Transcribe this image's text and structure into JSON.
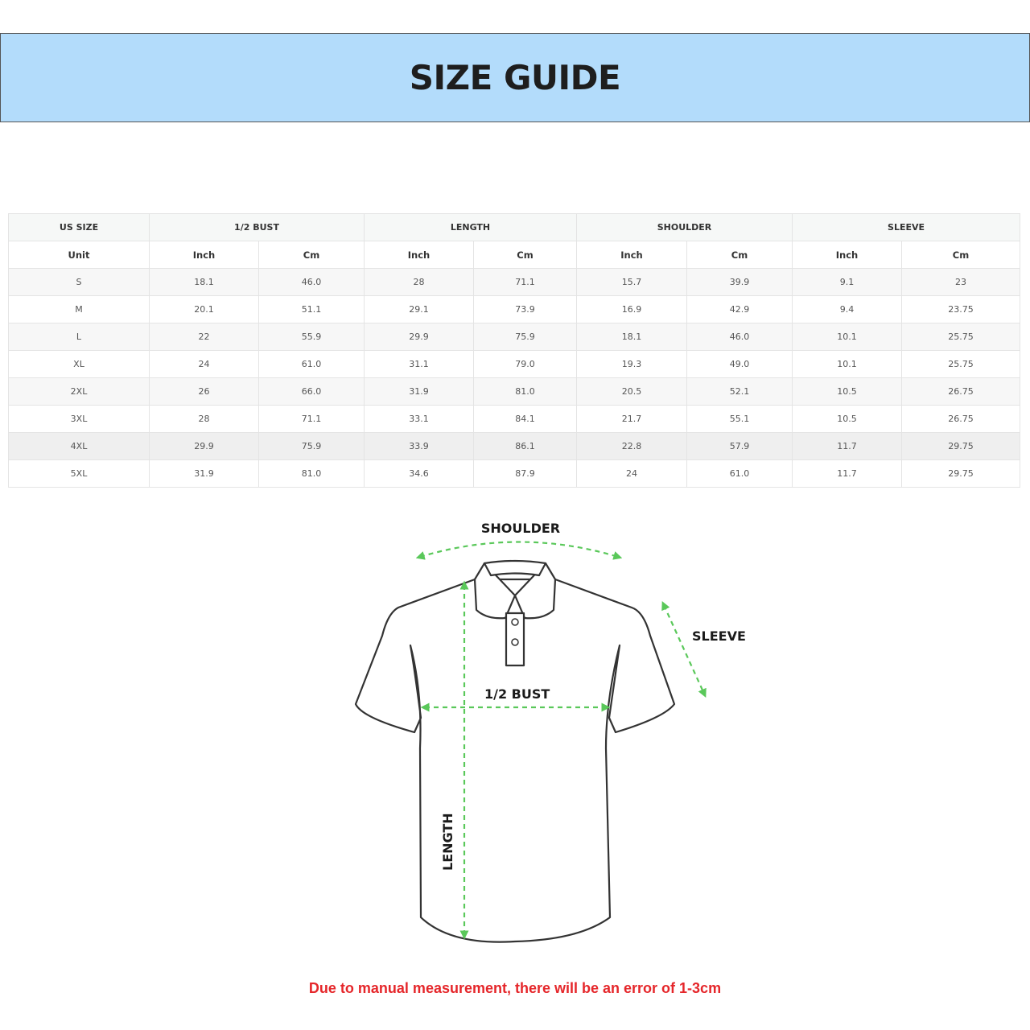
{
  "title": "SIZE GUIDE",
  "table": {
    "group_headers": [
      "US SIZE",
      "1/2 BUST",
      "LENGTH",
      "SHOULDER",
      "SLEEVE"
    ],
    "unit_row": [
      "Unit",
      "Inch",
      "Cm",
      "Inch",
      "Cm",
      "Inch",
      "Cm",
      "Inch",
      "Cm"
    ],
    "rows": [
      [
        "S",
        "18.1",
        "46.0",
        "28",
        "71.1",
        "15.7",
        "39.9",
        "9.1",
        "23"
      ],
      [
        "M",
        "20.1",
        "51.1",
        "29.1",
        "73.9",
        "16.9",
        "42.9",
        "9.4",
        "23.75"
      ],
      [
        "L",
        "22",
        "55.9",
        "29.9",
        "75.9",
        "18.1",
        "46.0",
        "10.1",
        "25.75"
      ],
      [
        "XL",
        "24",
        "61.0",
        "31.1",
        "79.0",
        "19.3",
        "49.0",
        "10.1",
        "25.75"
      ],
      [
        "2XL",
        "26",
        "66.0",
        "31.9",
        "81.0",
        "20.5",
        "52.1",
        "10.5",
        "26.75"
      ],
      [
        "3XL",
        "28",
        "71.1",
        "33.1",
        "84.1",
        "21.7",
        "55.1",
        "10.5",
        "26.75"
      ],
      [
        "4XL",
        "29.9",
        "75.9",
        "33.9",
        "86.1",
        "22.8",
        "57.9",
        "11.7",
        "29.75"
      ],
      [
        "5XL",
        "31.9",
        "81.0",
        "34.6",
        "87.9",
        "24",
        "61.0",
        "11.7",
        "29.75"
      ]
    ]
  },
  "diagram": {
    "shoulder": "SHOULDER",
    "sleeve": "SLEEVE",
    "bust": "1/2 BUST",
    "length": "LENGTH",
    "arrow_color": "#5ac85a"
  },
  "note": "Due to manual measurement, there will be an error of 1-3cm"
}
